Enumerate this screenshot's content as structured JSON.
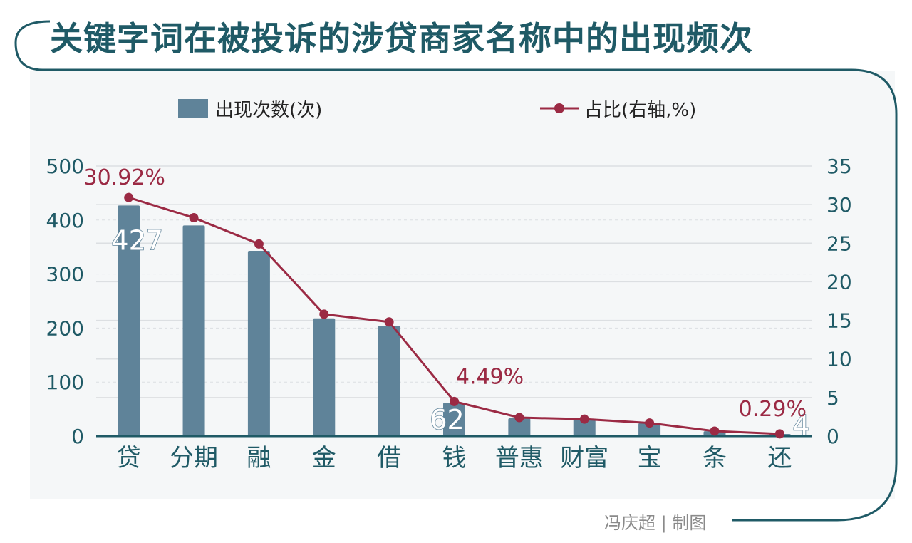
{
  "title": "关键字词在被投诉的涉贷商家名称中的出现频次",
  "credit": "冯庆超 | 制图",
  "colors": {
    "bar": "#5f8399",
    "line": "#9b2a44",
    "axis": "#1f5a66",
    "frame": "#1f5a66",
    "panel": "#f5f7f8",
    "grid": "#dcdfe2"
  },
  "chart_data": {
    "type": "bar",
    "categories": [
      "贷",
      "分期",
      "融",
      "金",
      "借",
      "钱",
      "普惠",
      "财富",
      "宝",
      "条",
      "还"
    ],
    "series": [
      {
        "name": "出现次数(次)",
        "type": "bar",
        "axis": "left",
        "values": [
          427,
          390,
          343,
          218,
          204,
          62,
          33,
          31,
          24,
          9,
          4
        ]
      },
      {
        "name": "占比(右轴,%)",
        "type": "line",
        "axis": "right",
        "values": [
          30.92,
          28.3,
          24.9,
          15.8,
          14.8,
          4.49,
          2.4,
          2.2,
          1.7,
          0.65,
          0.29
        ]
      }
    ],
    "y_left": {
      "min": 0,
      "max": 500,
      "ticks": [
        0,
        100,
        200,
        300,
        400,
        500
      ]
    },
    "y_right": {
      "min": 0,
      "max": 35,
      "ticks": [
        0,
        5,
        10,
        15,
        20,
        25,
        30,
        35
      ]
    },
    "bar_labels": [
      {
        "index": 0,
        "text": "427"
      },
      {
        "index": 5,
        "text": "62"
      },
      {
        "index": 10,
        "text": "4"
      }
    ],
    "line_labels": [
      {
        "index": 0,
        "text": "30.92%"
      },
      {
        "index": 5,
        "text": "4.49%"
      },
      {
        "index": 10,
        "text": "0.29%"
      }
    ],
    "grid": true,
    "legend_position": "top"
  }
}
